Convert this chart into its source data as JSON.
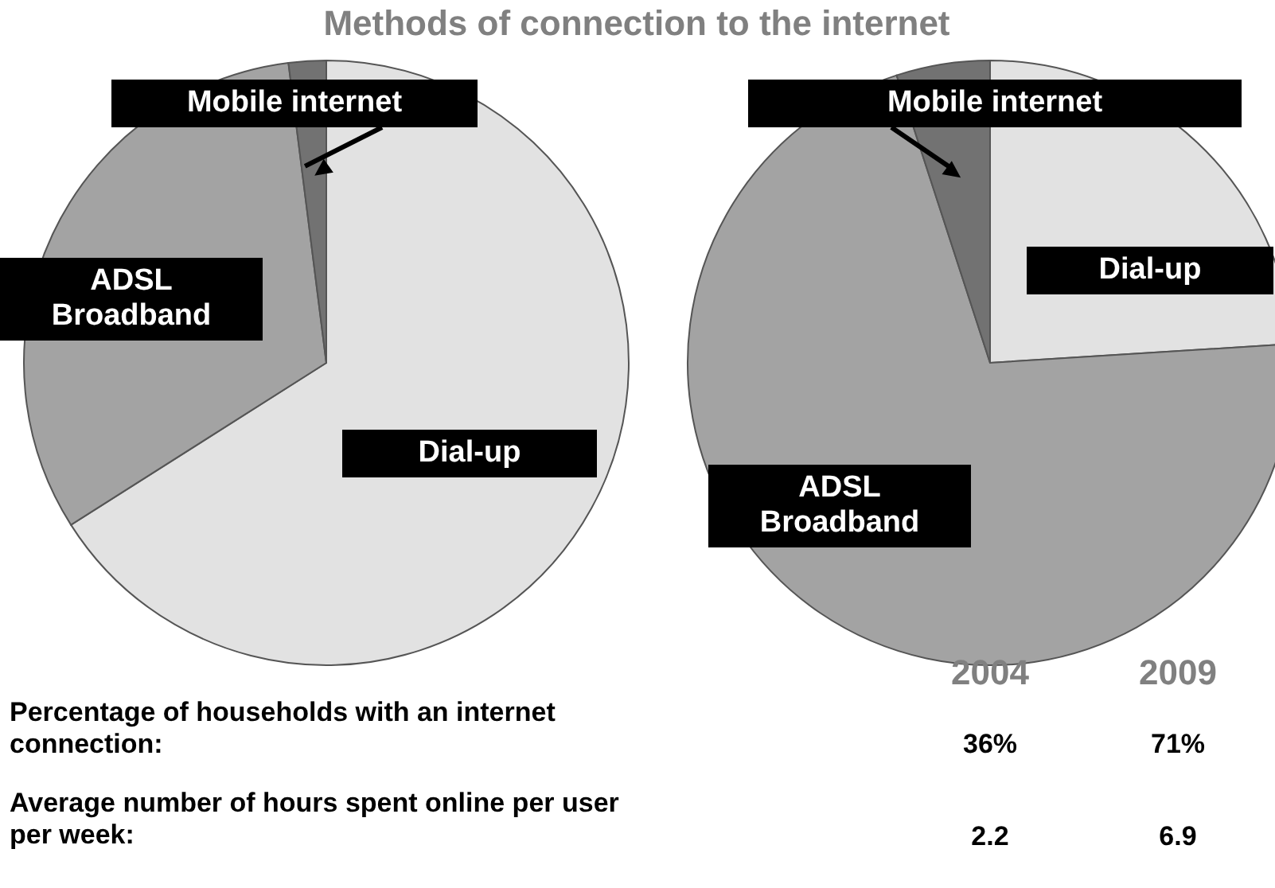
{
  "chart_data": [
    {
      "type": "pie",
      "title": "Methods of connection to the internet",
      "categories": [
        "Dial-up",
        "ADSL Broadband",
        "Mobile internet"
      ],
      "values": [
        66,
        32,
        2
      ],
      "colors": [
        "#e2e2e2",
        "#a3a3a3",
        "#727272"
      ]
    },
    {
      "type": "pie",
      "categories": [
        "Dial-up",
        "ADSL Broadband",
        "Mobile internet"
      ],
      "values": [
        24,
        71,
        5
      ],
      "colors": [
        "#e2e2e2",
        "#a3a3a3",
        "#727272"
      ]
    },
    {
      "type": "other",
      "annotations": [
        "2004",
        "2009",
        "Percentage of households with an internet connection:",
        "36%",
        "71%",
        "Average number of hours spent online per user per week:",
        "2.2",
        "6.9"
      ]
    }
  ]
}
